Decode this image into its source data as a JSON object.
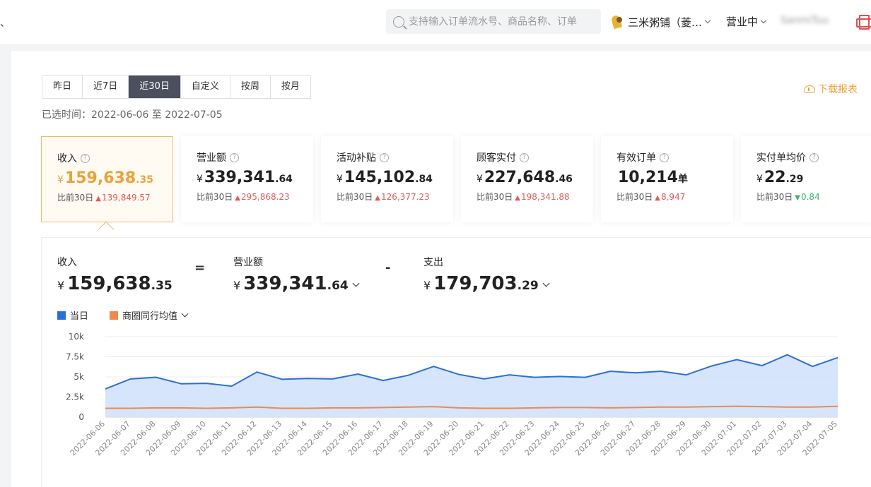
{
  "header": {
    "left_mark": "、",
    "search_placeholder": "支持输入订单流水号、商品名称、订单",
    "store_name": "三米粥铺（菱…",
    "biz_status": "营业中",
    "user_name": "SanmiTuu"
  },
  "range_tabs": [
    {
      "label": "昨日",
      "active": false
    },
    {
      "label": "近7日",
      "active": false
    },
    {
      "label": "近30日",
      "active": true
    },
    {
      "label": "自定义",
      "active": false
    },
    {
      "label": "按周",
      "active": false
    },
    {
      "label": "按月",
      "active": false
    }
  ],
  "selected_range": "已选时间：2022-06-06 至 2022-07-05",
  "download_label": "下载报表",
  "metrics": [
    {
      "title": "收入",
      "yen": "¥",
      "int": "159,638",
      "dec": ".35",
      "compare_label": "比前30日",
      "direction": "up",
      "arrow": "▲",
      "delta": "139,849.57",
      "active": true
    },
    {
      "title": "营业额",
      "yen": "¥",
      "int": "339,341",
      "dec": ".64",
      "compare_label": "比前30日",
      "direction": "up",
      "arrow": "▲",
      "delta": "295,868.23",
      "active": false
    },
    {
      "title": "活动补贴",
      "yen": "¥",
      "int": "145,102",
      "dec": ".84",
      "compare_label": "比前30日",
      "direction": "up",
      "arrow": "▲",
      "delta": "126,377.23",
      "active": false
    },
    {
      "title": "顾客实付",
      "yen": "¥",
      "int": "227,648",
      "dec": ".46",
      "compare_label": "比前30日",
      "direction": "up",
      "arrow": "▲",
      "delta": "198,341.88",
      "active": false
    },
    {
      "title": "有效订单",
      "yen": "",
      "int": "10,214",
      "dec": "单",
      "compare_label": "比前30日",
      "direction": "up",
      "arrow": "▲",
      "delta": "8,947",
      "active": false
    },
    {
      "title": "实付单均价",
      "yen": "¥",
      "int": "22",
      "dec": ".29",
      "compare_label": "比前30日",
      "direction": "down",
      "arrow": "▼",
      "delta": "0.84",
      "active": false
    }
  ],
  "formula": {
    "income": {
      "label": "收入",
      "yen": "¥",
      "int": "159,638",
      "dec": ".35"
    },
    "op1": "=",
    "turnover": {
      "label": "营业额",
      "yen": "¥",
      "int": "339,341",
      "dec": ".64"
    },
    "op2": "-",
    "expense": {
      "label": "支出",
      "yen": "¥",
      "int": "179,703",
      "dec": ".29"
    }
  },
  "colors": {
    "accent": "#e9a23b",
    "series_daily": "#2b6fd6",
    "series_area": "#cfe0fb",
    "series_avg": "#ee8a4a",
    "up": "#e05a5a",
    "down": "#3cb36f"
  },
  "chart_data": {
    "type": "area",
    "x": [
      "2022-06-06",
      "2022-06-07",
      "2022-06-08",
      "2022-06-09",
      "2022-06-10",
      "2022-06-11",
      "2022-06-12",
      "2022-06-13",
      "2022-06-14",
      "2022-06-15",
      "2022-06-16",
      "2022-06-17",
      "2022-06-18",
      "2022-06-19",
      "2022-06-20",
      "2022-06-21",
      "2022-06-22",
      "2022-06-23",
      "2022-06-24",
      "2022-06-25",
      "2022-06-26",
      "2022-06-27",
      "2022-06-28",
      "2022-06-29",
      "2022-06-30",
      "2022-07-01",
      "2022-07-02",
      "2022-07-03",
      "2022-07-04",
      "2022-07-05"
    ],
    "series": [
      {
        "name": "当日",
        "color": "#2b6fd6",
        "values": [
          3500,
          4750,
          4950,
          4150,
          4200,
          3850,
          5600,
          4700,
          4800,
          4750,
          5350,
          4550,
          5200,
          6300,
          5300,
          4750,
          5250,
          4950,
          5050,
          4950,
          5700,
          5500,
          5700,
          5250,
          6350,
          7150,
          6400,
          7750,
          6300,
          7400
        ]
      },
      {
        "name": "商圈同行均值",
        "color": "#ee8a4a",
        "values": [
          1100,
          1100,
          1150,
          1150,
          1100,
          1150,
          1250,
          1100,
          1100,
          1150,
          1150,
          1200,
          1250,
          1300,
          1150,
          1100,
          1100,
          1150,
          1200,
          1200,
          1150,
          1200,
          1250,
          1250,
          1300,
          1350,
          1300,
          1250,
          1250,
          1350
        ]
      }
    ],
    "y_ticks": [
      "0",
      "2.5k",
      "5k",
      "7.5k",
      "10k"
    ],
    "ylim": [
      0,
      10000
    ],
    "grid": true,
    "legend": "top-left"
  }
}
